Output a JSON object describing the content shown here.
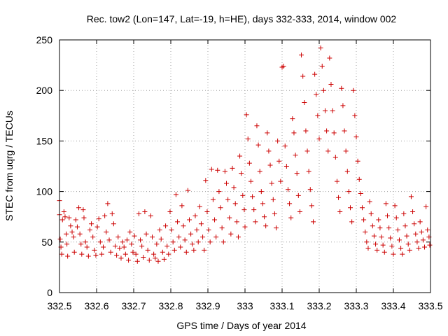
{
  "chart_data": {
    "type": "scatter",
    "title": "Rec. tow2 (Lon=147, Lat=-19, h=HE), days 332-333, 2014, window 002",
    "xlabel": "GPS time / Days of year 2014",
    "ylabel": "STEC from uqrg / TECUs",
    "xlim": [
      332.5,
      333.5
    ],
    "ylim": [
      0,
      250
    ],
    "x_ticks": [
      "332.5",
      "332.6",
      "332.7",
      "332.8",
      "332.9",
      "333",
      "333.1",
      "333.2",
      "333.3",
      "333.4",
      "333.5"
    ],
    "y_ticks": [
      "0",
      "50",
      "100",
      "150",
      "200",
      "250"
    ],
    "grid": true,
    "marker": "plus",
    "color": "#cc0000",
    "series": [
      {
        "points": [
          [
            332.5,
            91
          ],
          [
            332.5,
            77
          ],
          [
            332.502,
            53
          ],
          [
            332.504,
            45
          ],
          [
            332.506,
            38
          ],
          [
            332.508,
            72
          ],
          [
            332.512,
            80
          ],
          [
            332.515,
            75
          ],
          [
            332.518,
            58
          ],
          [
            332.52,
            48
          ],
          [
            332.522,
            36
          ],
          [
            332.526,
            74
          ],
          [
            332.53,
            66
          ],
          [
            332.534,
            60
          ],
          [
            332.538,
            55
          ],
          [
            332.54,
            40
          ],
          [
            332.544,
            72
          ],
          [
            332.548,
            65
          ],
          [
            332.552,
            84
          ],
          [
            332.555,
            58
          ],
          [
            332.558,
            48
          ],
          [
            332.56,
            38
          ],
          [
            332.564,
            82
          ],
          [
            332.566,
            74
          ],
          [
            332.57,
            50
          ],
          [
            332.574,
            45
          ],
          [
            332.578,
            36
          ],
          [
            332.582,
            62
          ],
          [
            332.586,
            68
          ],
          [
            332.59,
            55
          ],
          [
            332.594,
            42
          ],
          [
            332.598,
            37
          ],
          [
            332.602,
            65
          ],
          [
            332.606,
            73
          ],
          [
            332.61,
            50
          ],
          [
            332.614,
            38
          ],
          [
            332.618,
            45
          ],
          [
            332.622,
            76
          ],
          [
            332.626,
            60
          ],
          [
            332.63,
            88
          ],
          [
            332.634,
            52
          ],
          [
            332.638,
            40
          ],
          [
            332.642,
            78
          ],
          [
            332.646,
            68
          ],
          [
            332.65,
            46
          ],
          [
            332.654,
            37
          ],
          [
            332.658,
            55
          ],
          [
            332.662,
            44
          ],
          [
            332.666,
            34
          ],
          [
            332.67,
            50
          ],
          [
            332.674,
            45
          ],
          [
            332.678,
            38
          ],
          [
            332.682,
            52
          ],
          [
            332.686,
            32
          ],
          [
            332.69,
            60
          ],
          [
            332.694,
            48
          ],
          [
            332.698,
            40
          ],
          [
            332.702,
            56
          ],
          [
            332.706,
            38
          ],
          [
            332.71,
            31
          ],
          [
            332.714,
            78
          ],
          [
            332.718,
            52
          ],
          [
            332.722,
            46
          ],
          [
            332.726,
            35
          ],
          [
            332.73,
            80
          ],
          [
            332.734,
            58
          ],
          [
            332.738,
            42
          ],
          [
            332.742,
            32
          ],
          [
            332.746,
            76
          ],
          [
            332.75,
            55
          ],
          [
            332.754,
            38
          ],
          [
            332.758,
            34
          ],
          [
            332.762,
            48
          ],
          [
            332.766,
            31
          ],
          [
            332.77,
            62
          ],
          [
            332.774,
            53
          ],
          [
            332.778,
            40
          ],
          [
            332.782,
            33
          ],
          [
            332.786,
            66
          ],
          [
            332.79,
            46
          ],
          [
            332.794,
            38
          ],
          [
            332.798,
            80
          ],
          [
            332.802,
            62
          ],
          [
            332.806,
            50
          ],
          [
            332.81,
            42
          ],
          [
            332.814,
            97
          ],
          [
            332.818,
            70
          ],
          [
            332.822,
            55
          ],
          [
            332.826,
            45
          ],
          [
            332.83,
            86
          ],
          [
            332.834,
            66
          ],
          [
            332.838,
            52
          ],
          [
            332.842,
            40
          ],
          [
            332.846,
            101
          ],
          [
            332.85,
            72
          ],
          [
            332.854,
            58
          ],
          [
            332.858,
            48
          ],
          [
            332.862,
            42
          ],
          [
            332.866,
            76
          ],
          [
            332.87,
            62
          ],
          [
            332.874,
            50
          ],
          [
            332.878,
            85
          ],
          [
            332.882,
            68
          ],
          [
            332.886,
            55
          ],
          [
            332.89,
            42
          ],
          [
            332.894,
            111
          ],
          [
            332.898,
            80
          ],
          [
            332.902,
            62
          ],
          [
            332.906,
            50
          ],
          [
            332.91,
            122
          ],
          [
            332.914,
            92
          ],
          [
            332.918,
            72
          ],
          [
            332.922,
            55
          ],
          [
            332.926,
            121
          ],
          [
            332.93,
            100
          ],
          [
            332.934,
            84
          ],
          [
            332.938,
            64
          ],
          [
            332.942,
            50
          ],
          [
            332.946,
            120
          ],
          [
            332.95,
            108
          ],
          [
            332.954,
            92
          ],
          [
            332.958,
            74
          ],
          [
            332.962,
            58
          ],
          [
            332.966,
            123
          ],
          [
            332.97,
            104
          ],
          [
            332.974,
            88
          ],
          [
            332.978,
            70
          ],
          [
            332.982,
            55
          ],
          [
            332.986,
            135
          ],
          [
            332.99,
            118
          ],
          [
            332.994,
            96
          ],
          [
            332.998,
            82
          ],
          [
            333.0,
            65
          ],
          [
            333.004,
            176
          ],
          [
            333.008,
            152
          ],
          [
            333.012,
            128
          ],
          [
            333.016,
            110
          ],
          [
            333.02,
            95
          ],
          [
            333.024,
            82
          ],
          [
            333.028,
            70
          ],
          [
            333.032,
            165
          ],
          [
            333.036,
            146
          ],
          [
            333.04,
            120
          ],
          [
            333.044,
            100
          ],
          [
            333.048,
            88
          ],
          [
            333.052,
            75
          ],
          [
            333.056,
            66
          ],
          [
            333.06,
            158
          ],
          [
            333.064,
            140
          ],
          [
            333.068,
            126
          ],
          [
            333.072,
            108
          ],
          [
            333.076,
            92
          ],
          [
            333.08,
            78
          ],
          [
            333.084,
            64
          ],
          [
            333.088,
            150
          ],
          [
            333.092,
            130
          ],
          [
            333.096,
            110
          ],
          [
            333.1,
            223
          ],
          [
            333.104,
            224
          ],
          [
            333.108,
            145
          ],
          [
            333.112,
            125
          ],
          [
            333.116,
            102
          ],
          [
            333.12,
            88
          ],
          [
            333.124,
            74
          ],
          [
            333.128,
            172
          ],
          [
            333.132,
            158
          ],
          [
            333.136,
            136
          ],
          [
            333.14,
            118
          ],
          [
            333.144,
            96
          ],
          [
            333.148,
            80
          ],
          [
            333.152,
            235
          ],
          [
            333.156,
            214
          ],
          [
            333.16,
            188
          ],
          [
            333.164,
            160
          ],
          [
            333.168,
            140
          ],
          [
            333.172,
            120
          ],
          [
            333.176,
            102
          ],
          [
            333.18,
            86
          ],
          [
            333.184,
            70
          ],
          [
            333.188,
            216
          ],
          [
            333.192,
            196
          ],
          [
            333.196,
            175
          ],
          [
            333.2,
            152
          ],
          [
            333.204,
            242
          ],
          [
            333.208,
            224
          ],
          [
            333.212,
            200
          ],
          [
            333.216,
            180
          ],
          [
            333.22,
            160
          ],
          [
            333.224,
            140
          ],
          [
            333.228,
            232
          ],
          [
            333.232,
            206
          ],
          [
            333.236,
            180
          ],
          [
            333.24,
            158
          ],
          [
            333.244,
            134
          ],
          [
            333.248,
            110
          ],
          [
            333.252,
            94
          ],
          [
            333.256,
            80
          ],
          [
            333.26,
            202
          ],
          [
            333.264,
            185
          ],
          [
            333.268,
            160
          ],
          [
            333.272,
            140
          ],
          [
            333.276,
            120
          ],
          [
            333.28,
            100
          ],
          [
            333.284,
            84
          ],
          [
            333.288,
            70
          ],
          [
            333.292,
            200
          ],
          [
            333.296,
            175
          ],
          [
            333.3,
            154
          ],
          [
            333.304,
            130
          ],
          [
            333.308,
            112
          ],
          [
            333.312,
            98
          ],
          [
            333.316,
            84
          ],
          [
            333.32,
            72
          ],
          [
            333.324,
            60
          ],
          [
            333.328,
            50
          ],
          [
            333.332,
            44
          ],
          [
            333.336,
            90
          ],
          [
            333.34,
            78
          ],
          [
            333.344,
            66
          ],
          [
            333.348,
            56
          ],
          [
            333.352,
            48
          ],
          [
            333.356,
            42
          ],
          [
            333.36,
            72
          ],
          [
            333.364,
            64
          ],
          [
            333.368,
            55
          ],
          [
            333.372,
            47
          ],
          [
            333.376,
            40
          ],
          [
            333.38,
            88
          ],
          [
            333.384,
            76
          ],
          [
            333.388,
            64
          ],
          [
            333.392,
            54
          ],
          [
            333.396,
            46
          ],
          [
            333.4,
            38
          ],
          [
            333.404,
            86
          ],
          [
            333.408,
            74
          ],
          [
            333.412,
            62
          ],
          [
            333.416,
            52
          ],
          [
            333.42,
            44
          ],
          [
            333.424,
            38
          ],
          [
            333.428,
            78
          ],
          [
            333.432,
            66
          ],
          [
            333.436,
            56
          ],
          [
            333.44,
            48
          ],
          [
            333.444,
            42
          ],
          [
            333.448,
            95
          ],
          [
            333.452,
            80
          ],
          [
            333.456,
            68
          ],
          [
            333.46,
            58
          ],
          [
            333.464,
            50
          ],
          [
            333.468,
            44
          ],
          [
            333.472,
            70
          ],
          [
            333.476,
            60
          ],
          [
            333.48,
            52
          ],
          [
            333.484,
            45
          ],
          [
            333.488,
            85
          ],
          [
            333.492,
            62
          ],
          [
            333.496,
            55
          ],
          [
            333.498,
            47
          ]
        ]
      }
    ]
  }
}
